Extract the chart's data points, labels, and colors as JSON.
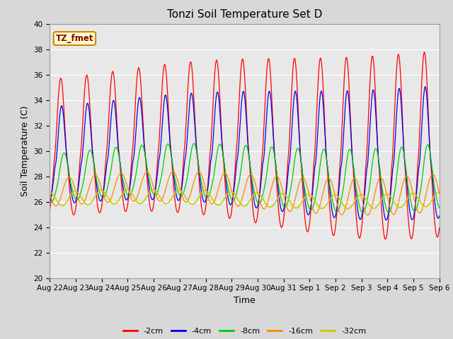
{
  "title": "Tonzi Soil Temperature Set D",
  "xlabel": "Time",
  "ylabel": "Soil Temperature (C)",
  "ylim": [
    20,
    40
  ],
  "yticks": [
    20,
    22,
    24,
    26,
    28,
    30,
    32,
    34,
    36,
    38,
    40
  ],
  "x_labels": [
    "Aug 22",
    "Aug 23",
    "Aug 24",
    "Aug 25",
    "Aug 26",
    "Aug 27",
    "Aug 28",
    "Aug 29",
    "Aug 30",
    "Aug 31",
    "Sep 1",
    "Sep 2",
    "Sep 3",
    "Sep 4",
    "Sep 5",
    "Sep 6"
  ],
  "colors": {
    "-2cm": "#ff0000",
    "-4cm": "#0000ee",
    "-8cm": "#00cc00",
    "-16cm": "#ff8800",
    "-32cm": "#cccc00"
  },
  "legend_label": "TZ_fmet",
  "legend_bg": "#ffffcc",
  "legend_border": "#cc8800",
  "plot_bg": "#e8e8e8",
  "n_days": 15,
  "samples_per_day": 48
}
